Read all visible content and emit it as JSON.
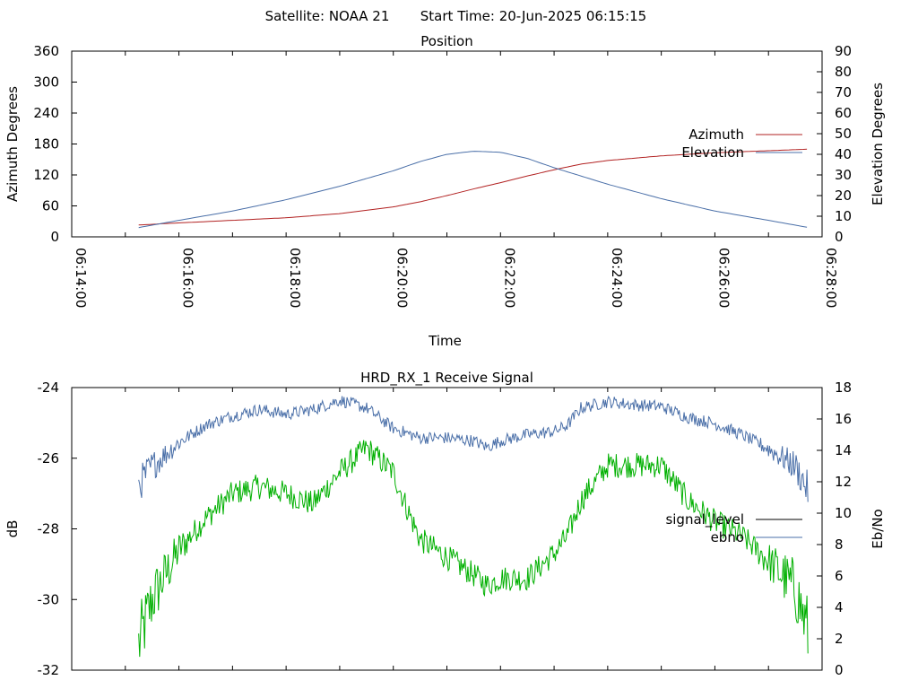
{
  "header": {
    "satellite": "Satellite: NOAA 21",
    "start_time": "Start Time: 20-Jun-2025 06:15:15"
  },
  "chart_data": [
    {
      "type": "line",
      "title": "Position",
      "xlabel": "Time",
      "ylabel": "Azimuth Degrees",
      "y2label": "Elevation Degrees",
      "xlim": [
        "06:14:00",
        "06:28:00"
      ],
      "x_ticks": [
        "06:14:00",
        "06:16:00",
        "06:18:00",
        "06:20:00",
        "06:22:00",
        "06:24:00",
        "06:26:00",
        "06:28:00"
      ],
      "ylim": [
        0,
        360
      ],
      "y_ticks": [
        "0",
        "60",
        "120",
        "180",
        "240",
        "300",
        "360"
      ],
      "y2lim": [
        0,
        90
      ],
      "y2_ticks": [
        "0",
        "10",
        "20",
        "30",
        "40",
        "50",
        "60",
        "70",
        "80",
        "90"
      ],
      "grid": false,
      "legend_position": "right",
      "series": [
        {
          "name": "Azimuth",
          "axis": "left",
          "color": "#b22222",
          "x": [
            "06:15:15",
            "06:16:00",
            "06:17:00",
            "06:18:00",
            "06:19:00",
            "06:20:00",
            "06:20:30",
            "06:21:00",
            "06:21:30",
            "06:22:00",
            "06:22:30",
            "06:23:00",
            "06:23:30",
            "06:24:00",
            "06:25:00",
            "06:26:00",
            "06:27:00",
            "06:27:45"
          ],
          "values": [
            23,
            27,
            32,
            37,
            45,
            58,
            68,
            80,
            93,
            105,
            118,
            130,
            141,
            148,
            157,
            163,
            167,
            170
          ]
        },
        {
          "name": "Elevation",
          "axis": "right",
          "color": "#4a6fa8",
          "x": [
            "06:15:15",
            "06:16:00",
            "06:17:00",
            "06:18:00",
            "06:19:00",
            "06:20:00",
            "06:20:30",
            "06:21:00",
            "06:21:30",
            "06:22:00",
            "06:22:30",
            "06:23:00",
            "06:23:30",
            "06:24:00",
            "06:25:00",
            "06:26:00",
            "06:27:00",
            "06:27:45"
          ],
          "values": [
            4.5,
            8,
            12.5,
            18,
            24.5,
            32,
            36.5,
            40,
            41.5,
            41,
            38,
            33.5,
            29.5,
            25.5,
            18.5,
            12.5,
            8,
            4.5
          ]
        }
      ]
    },
    {
      "type": "line",
      "title": "HRD_RX_1 Receive Signal",
      "xlabel": "",
      "ylabel": "dB",
      "y2label": "Eb/No",
      "xlim": [
        "06:14:00",
        "06:28:00"
      ],
      "ylim": [
        -32,
        -24
      ],
      "y_ticks": [
        "-32",
        "-30",
        "-28",
        "-26",
        "-24"
      ],
      "y2lim": [
        0,
        18
      ],
      "y2_ticks": [
        "0",
        "2",
        "4",
        "6",
        "8",
        "10",
        "12",
        "14",
        "16",
        "18"
      ],
      "grid": false,
      "legend_position": "right",
      "legend": [
        {
          "name": "signal_level",
          "color": "#000000"
        },
        {
          "name": "ebno",
          "color": "#4a6fa8"
        }
      ],
      "series": [
        {
          "name": "signal_level",
          "axis": "left",
          "color": "#00b000",
          "x": [
            "06:15:15",
            "06:15:30",
            "06:16:00",
            "06:16:30",
            "06:17:00",
            "06:17:30",
            "06:18:00",
            "06:18:30",
            "06:19:00",
            "06:19:30",
            "06:20:00",
            "06:20:15",
            "06:20:30",
            "06:21:00",
            "06:21:30",
            "06:21:45",
            "06:22:00",
            "06:22:30",
            "06:23:00",
            "06:23:15",
            "06:23:30",
            "06:24:00",
            "06:24:30",
            "06:25:00",
            "06:25:30",
            "06:26:00",
            "06:26:30",
            "06:27:00",
            "06:27:30",
            "06:27:45"
          ],
          "values": [
            -31.3,
            -30.0,
            -28.6,
            -27.7,
            -27.0,
            -26.8,
            -27.0,
            -27.3,
            -26.4,
            -25.7,
            -26.4,
            -27.4,
            -28.3,
            -28.8,
            -29.3,
            -29.6,
            -29.4,
            -29.4,
            -28.7,
            -28.2,
            -27.2,
            -26.2,
            -26.2,
            -26.2,
            -27.2,
            -27.8,
            -28.2,
            -28.9,
            -29.7,
            -31.0
          ]
        },
        {
          "name": "ebno",
          "axis": "right",
          "color": "#4a6fa8",
          "x": [
            "06:15:15",
            "06:15:30",
            "06:16:00",
            "06:16:30",
            "06:17:00",
            "06:17:30",
            "06:18:00",
            "06:18:30",
            "06:19:00",
            "06:19:30",
            "06:20:00",
            "06:20:15",
            "06:20:30",
            "06:21:00",
            "06:21:30",
            "06:21:45",
            "06:22:00",
            "06:22:30",
            "06:23:00",
            "06:23:15",
            "06:23:30",
            "06:24:00",
            "06:24:30",
            "06:25:00",
            "06:25:30",
            "06:26:00",
            "06:26:30",
            "06:27:00",
            "06:27:30",
            "06:27:45"
          ],
          "values": [
            11.8,
            13.0,
            14.5,
            15.6,
            16.2,
            16.6,
            16.3,
            16.6,
            17.2,
            16.7,
            15.4,
            15.1,
            14.8,
            14.8,
            14.6,
            14.2,
            14.6,
            15.0,
            15.2,
            15.6,
            16.7,
            17.1,
            16.9,
            16.8,
            16.1,
            15.7,
            15.0,
            14.1,
            13.0,
            11.4
          ]
        }
      ]
    }
  ]
}
